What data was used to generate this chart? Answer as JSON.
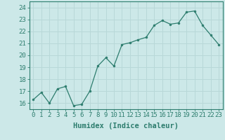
{
  "x": [
    0,
    1,
    2,
    3,
    4,
    5,
    6,
    7,
    8,
    9,
    10,
    11,
    12,
    13,
    14,
    15,
    16,
    17,
    18,
    19,
    20,
    21,
    22,
    23
  ],
  "y": [
    16.3,
    16.9,
    16.0,
    17.2,
    17.4,
    15.8,
    15.9,
    17.0,
    19.1,
    19.8,
    19.1,
    20.9,
    21.05,
    21.3,
    21.5,
    22.5,
    22.9,
    22.6,
    22.7,
    23.6,
    23.7,
    22.5,
    21.7,
    20.9
  ],
  "line_color": "#2d7d6e",
  "marker_color": "#2d7d6e",
  "bg_color": "#cce8e8",
  "grid_color": "#b8d8d8",
  "axis_color": "#2d7d6e",
  "xlabel": "Humidex (Indice chaleur)",
  "ylim": [
    15.5,
    24.5
  ],
  "xlim": [
    -0.5,
    23.5
  ],
  "yticks": [
    16,
    17,
    18,
    19,
    20,
    21,
    22,
    23,
    24
  ],
  "xticks": [
    0,
    1,
    2,
    3,
    4,
    5,
    6,
    7,
    8,
    9,
    10,
    11,
    12,
    13,
    14,
    15,
    16,
    17,
    18,
    19,
    20,
    21,
    22,
    23
  ],
  "font_size_label": 7.5,
  "font_size_tick": 6.5
}
